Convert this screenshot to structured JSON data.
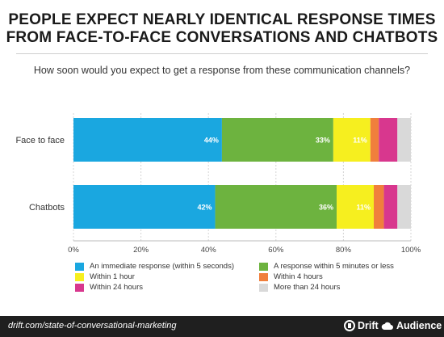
{
  "header": {
    "title_line1": "PEOPLE EXPECT NEARLY IDENTICAL RESPONSE TIMES",
    "title_line2": "FROM FACE-TO-FACE CONVERSATIONS AND CHATBOTS",
    "subtitle": "How soon would you expect to get a response from these communication channels?"
  },
  "chart_data": {
    "type": "bar",
    "orientation": "horizontal",
    "stacked": true,
    "categories": [
      "Face to face",
      "Chatbots"
    ],
    "xlim": [
      0,
      100
    ],
    "xticks": [
      "0%",
      "20%",
      "40%",
      "60%",
      "80%",
      "100%"
    ],
    "grid": true,
    "legend_position": "bottom",
    "series": [
      {
        "name": "An immediate response (within 5 seconds)",
        "values": [
          44,
          42
        ],
        "labels": [
          "44%",
          "42%"
        ],
        "color": "#1aa7e0"
      },
      {
        "name": "A response within 5 minutes or less",
        "values": [
          33,
          36
        ],
        "labels": [
          "33%",
          "36%"
        ],
        "color": "#6db33f"
      },
      {
        "name": "Within 1 hour",
        "values": [
          11,
          11
        ],
        "labels": [
          "11%",
          "11%"
        ],
        "color": "#f6ef1f"
      },
      {
        "name": "Within 4 hours",
        "values": [
          2.5,
          3
        ],
        "labels": [
          "",
          ""
        ],
        "color": "#f07f3c"
      },
      {
        "name": "Within 24 hours",
        "values": [
          5.5,
          4
        ],
        "labels": [
          "",
          ""
        ],
        "color": "#d8378e"
      },
      {
        "name": "More than 24 hours",
        "values": [
          4,
          4
        ],
        "labels": [
          "",
          ""
        ],
        "color": "#d9d9d9"
      }
    ]
  },
  "footer": {
    "url": "drift.com/state-of-conversational-marketing",
    "brand1": "Drift",
    "brand2": "Audience"
  }
}
